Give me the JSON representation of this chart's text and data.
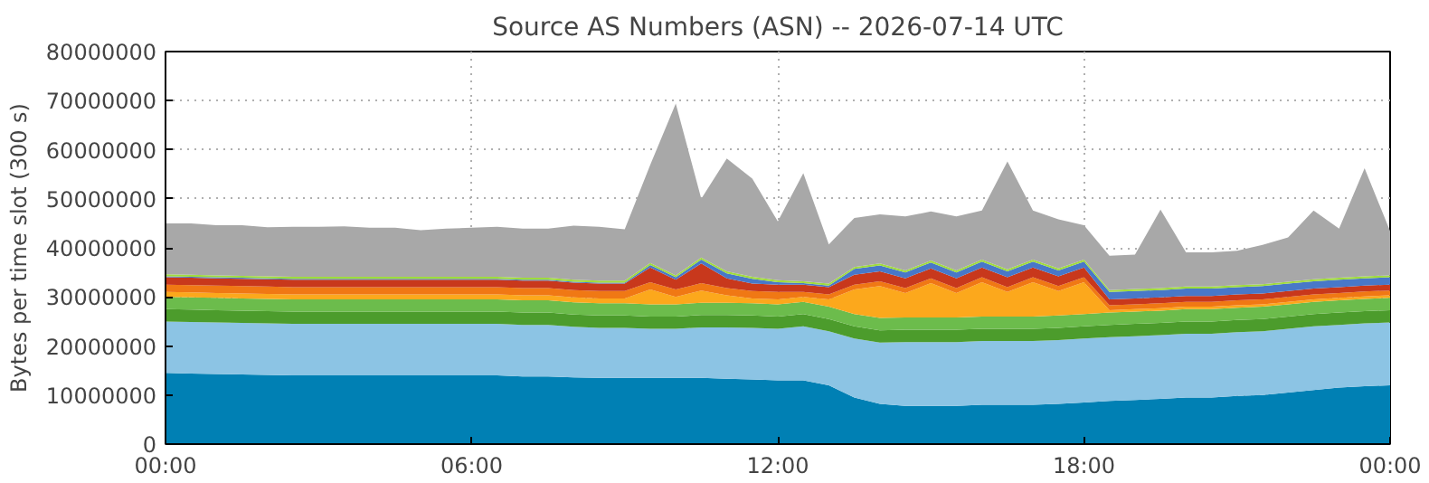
{
  "chart_data": {
    "type": "area",
    "stacked": true,
    "title": "Source AS Numbers (ASN) -- 2026-07-14 UTC",
    "ylabel": "Bytes per time slot (300 s)",
    "x": [
      0,
      0.5,
      1,
      1.5,
      2,
      2.5,
      3,
      3.5,
      4,
      4.5,
      5,
      5.5,
      6,
      6.5,
      7,
      7.5,
      8,
      8.5,
      9,
      9.5,
      10,
      10.5,
      11,
      11.5,
      12,
      12.5,
      13,
      13.5,
      14,
      14.5,
      15,
      15.5,
      16,
      16.5,
      17,
      17.5,
      18,
      18.5,
      19,
      19.5,
      20,
      20.5,
      21,
      21.5,
      22,
      22.5,
      23,
      23.5,
      24
    ],
    "xlim": [
      0,
      24
    ],
    "xticks": [
      {
        "value": 0,
        "label": "00:00"
      },
      {
        "value": 6,
        "label": "06:00"
      },
      {
        "value": 12,
        "label": "12:00"
      },
      {
        "value": 18,
        "label": "18:00"
      },
      {
        "value": 24,
        "label": "00:00"
      }
    ],
    "ylim": [
      0,
      80000000
    ],
    "yticks": [
      0,
      10000000,
      20000000,
      30000000,
      40000000,
      50000000,
      60000000,
      70000000,
      80000000
    ],
    "grid": true,
    "series": [
      {
        "color": "#0080b4",
        "values": [
          14500000.0,
          14400000.0,
          14300000.0,
          14200000.0,
          14100000.0,
          14000000.0,
          14000000.0,
          14000000.0,
          14000000.0,
          14000000.0,
          14000000.0,
          14000000.0,
          14000000.0,
          14000000.0,
          13800000.0,
          13800000.0,
          13600000.0,
          13500000.0,
          13500000.0,
          13500000.0,
          13500000.0,
          13500000.0,
          13300000.0,
          13200000.0,
          13000000.0,
          13000000.0,
          12000000.0,
          9500000.0,
          8200000.0,
          7800000.0,
          7800000.0,
          7800000.0,
          8000000.0,
          8000000.0,
          8000000.0,
          8200000.0,
          8500000.0,
          8800000.0,
          9000000.0,
          9200000.0,
          9500000.0,
          9500000.0,
          9800000.0,
          10000000.0,
          10500000.0,
          11000000.0,
          11500000.0,
          11800000.0,
          12000000.0
        ]
      },
      {
        "color": "#8cc4e4",
        "values": [
          10500000.0,
          10500000.0,
          10500000.0,
          10500000.0,
          10500000.0,
          10500000.0,
          10500000.0,
          10500000.0,
          10500000.0,
          10500000.0,
          10500000.0,
          10500000.0,
          10500000.0,
          10500000.0,
          10500000.0,
          10500000.0,
          10300000.0,
          10200000.0,
          10200000.0,
          10000000.0,
          10000000.0,
          10300000.0,
          10500000.0,
          10500000.0,
          10500000.0,
          11000000.0,
          11000000.0,
          12000000.0,
          12500000.0,
          13000000.0,
          13000000.0,
          13000000.0,
          13000000.0,
          13000000.0,
          13000000.0,
          13000000.0,
          13000000.0,
          13000000.0,
          13000000.0,
          13000000.0,
          13000000.0,
          13000000.0,
          13000000.0,
          13000000.0,
          13000000.0,
          13000000.0,
          12800000.0,
          12800000.0,
          12800000.0
        ]
      },
      {
        "color": "#4c9c2c",
        "values": [
          2500000.0,
          2500000.0,
          2500000.0,
          2500000.0,
          2500000.0,
          2500000.0,
          2500000.0,
          2500000.0,
          2500000.0,
          2500000.0,
          2500000.0,
          2500000.0,
          2500000.0,
          2500000.0,
          2500000.0,
          2500000.0,
          2500000.0,
          2500000.0,
          2500000.0,
          2500000.0,
          2500000.0,
          2500000.0,
          2500000.0,
          2500000.0,
          2500000.0,
          2500000.0,
          2500000.0,
          2500000.0,
          2500000.0,
          2500000.0,
          2500000.0,
          2500000.0,
          2500000.0,
          2500000.0,
          2500000.0,
          2500000.0,
          2500000.0,
          2500000.0,
          2500000.0,
          2500000.0,
          2500000.0,
          2500000.0,
          2500000.0,
          2500000.0,
          2500000.0,
          2500000.0,
          2500000.0,
          2500000.0,
          2500000.0
        ]
      },
      {
        "color": "#6cbc4c",
        "values": [
          2500000.0,
          2500000.0,
          2500000.0,
          2500000.0,
          2500000.0,
          2500000.0,
          2500000.0,
          2500000.0,
          2500000.0,
          2500000.0,
          2500000.0,
          2500000.0,
          2500000.0,
          2500000.0,
          2500000.0,
          2500000.0,
          2500000.0,
          2500000.0,
          2500000.0,
          2500000.0,
          2500000.0,
          2500000.0,
          2500000.0,
          2500000.0,
          2500000.0,
          2500000.0,
          2500000.0,
          2500000.0,
          2500000.0,
          2500000.0,
          2500000.0,
          2500000.0,
          2500000.0,
          2500000.0,
          2500000.0,
          2500000.0,
          2500000.0,
          2500000.0,
          2500000.0,
          2500000.0,
          2500000.0,
          2500000.0,
          2500000.0,
          2500000.0,
          2500000.0,
          2500000.0,
          2500000.0,
          2500000.0,
          2500000.0
        ]
      },
      {
        "color": "#fca81c",
        "values": [
          1000000.0,
          1000000.0,
          1000000.0,
          1000000.0,
          1000000.0,
          1000000.0,
          1000000.0,
          1000000.0,
          1000000.0,
          1000000.0,
          1000000.0,
          1000000.0,
          1000000.0,
          1000000.0,
          1000000.0,
          1000000.0,
          1000000.0,
          1000000.0,
          1000000.0,
          3000000.0,
          1500000.0,
          2500000.0,
          1500000.0,
          1000000.0,
          1000000.0,
          1000000.0,
          1500000.0,
          5000000.0,
          6500000.0,
          5000000.0,
          7000000.0,
          5000000.0,
          7000000.0,
          5000000.0,
          7000000.0,
          5000000.0,
          6500000.0,
          500000.0,
          500000.0,
          500000.0,
          500000.0,
          500000.0,
          500000.0,
          500000.0,
          500000.0,
          500000.0,
          500000.0,
          500000.0,
          500000.0
        ]
      },
      {
        "color": "#f07814",
        "values": [
          1500000.0,
          1500000.0,
          1500000.0,
          1500000.0,
          1500000.0,
          1500000.0,
          1500000.0,
          1500000.0,
          1500000.0,
          1500000.0,
          1500000.0,
          1500000.0,
          1500000.0,
          1500000.0,
          1500000.0,
          1500000.0,
          1500000.0,
          1500000.0,
          1500000.0,
          1500000.0,
          1500000.0,
          1500000.0,
          1500000.0,
          1500000.0,
          1500000.0,
          1000000.0,
          1000000.0,
          1000000.0,
          1000000.0,
          1000000.0,
          1000000.0,
          1000000.0,
          1000000.0,
          1000000.0,
          1000000.0,
          1000000.0,
          1000000.0,
          1000000.0,
          1000000.0,
          1000000.0,
          1000000.0,
          1000000.0,
          1000000.0,
          1000000.0,
          1000000.0,
          1000000.0,
          1000000.0,
          1000000.0,
          1000000.0
        ]
      },
      {
        "color": "#c8381c",
        "values": [
          1500000.0,
          1500000.0,
          1500000.0,
          1500000.0,
          1500000.0,
          1500000.0,
          1500000.0,
          1500000.0,
          1500000.0,
          1500000.0,
          1500000.0,
          1500000.0,
          1500000.0,
          1500000.0,
          1500000.0,
          1500000.0,
          1500000.0,
          1500000.0,
          1500000.0,
          3000000.0,
          2000000.0,
          4000000.0,
          2000000.0,
          1500000.0,
          1500000.0,
          1500000.0,
          1500000.0,
          2000000.0,
          2000000.0,
          2000000.0,
          2000000.0,
          2000000.0,
          2000000.0,
          2000000.0,
          2000000.0,
          2000000.0,
          2000000.0,
          1200000.0,
          1200000.0,
          1200000.0,
          1200000.0,
          1200000.0,
          1200000.0,
          1200000.0,
          1200000.0,
          1200000.0,
          1200000.0,
          1200000.0,
          1200000.0
        ]
      },
      {
        "color": "#4878c8",
        "values": [
          200000.0,
          200000.0,
          200000.0,
          200000.0,
          200000.0,
          200000.0,
          200000.0,
          200000.0,
          200000.0,
          200000.0,
          200000.0,
          200000.0,
          200000.0,
          200000.0,
          200000.0,
          200000.0,
          200000.0,
          200000.0,
          200000.0,
          500000.0,
          500000.0,
          800000.0,
          1000000.0,
          1000000.0,
          500000.0,
          300000.0,
          300000.0,
          1200000.0,
          1200000.0,
          1200000.0,
          1200000.0,
          1200000.0,
          1200000.0,
          1200000.0,
          1200000.0,
          1200000.0,
          1200000.0,
          1500000.0,
          1500000.0,
          1500000.0,
          1500000.0,
          1500000.0,
          1500000.0,
          1500000.0,
          1500000.0,
          1500000.0,
          1500000.0,
          1500000.0,
          1500000.0
        ]
      },
      {
        "color": "#a0dc3c",
        "values": [
          400000.0,
          400000.0,
          400000.0,
          400000.0,
          400000.0,
          400000.0,
          400000.0,
          400000.0,
          400000.0,
          400000.0,
          400000.0,
          400000.0,
          400000.0,
          400000.0,
          400000.0,
          400000.0,
          400000.0,
          400000.0,
          400000.0,
          400000.0,
          400000.0,
          400000.0,
          400000.0,
          400000.0,
          400000.0,
          400000.0,
          400000.0,
          400000.0,
          400000.0,
          400000.0,
          400000.0,
          400000.0,
          400000.0,
          400000.0,
          400000.0,
          400000.0,
          400000.0,
          400000.0,
          400000.0,
          400000.0,
          400000.0,
          400000.0,
          400000.0,
          400000.0,
          400000.0,
          400000.0,
          400000.0,
          400000.0,
          400000.0
        ]
      },
      {
        "color": "#a8a8a8",
        "values": [
          10400000.0,
          10500000.0,
          10200000.0,
          10300000.0,
          10000000.0,
          10200000.0,
          10200000.0,
          10300000.0,
          10000000.0,
          10000000.0,
          9500000.0,
          9800000.0,
          10000000.0,
          10200000.0,
          10000000.0,
          10000000.0,
          11000000.0,
          11000000.0,
          10500000.0,
          20000000.0,
          35000000.0,
          12000000.0,
          23000000.0,
          20000000.0,
          12000000.0,
          22000000.0,
          8000000.0,
          10000000.0,
          10000000.0,
          11000000.0,
          10000000.0,
          11000000.0,
          10000000.0,
          22000000.0,
          10000000.0,
          10000000.0,
          7000000.0,
          7000000.0,
          7000000.0,
          16000000.0,
          7000000.0,
          7000000.0,
          7000000.0,
          8000000.0,
          9000000.0,
          14000000.0,
          10000000.0,
          22000000.0,
          9000000.0
        ]
      }
    ]
  }
}
